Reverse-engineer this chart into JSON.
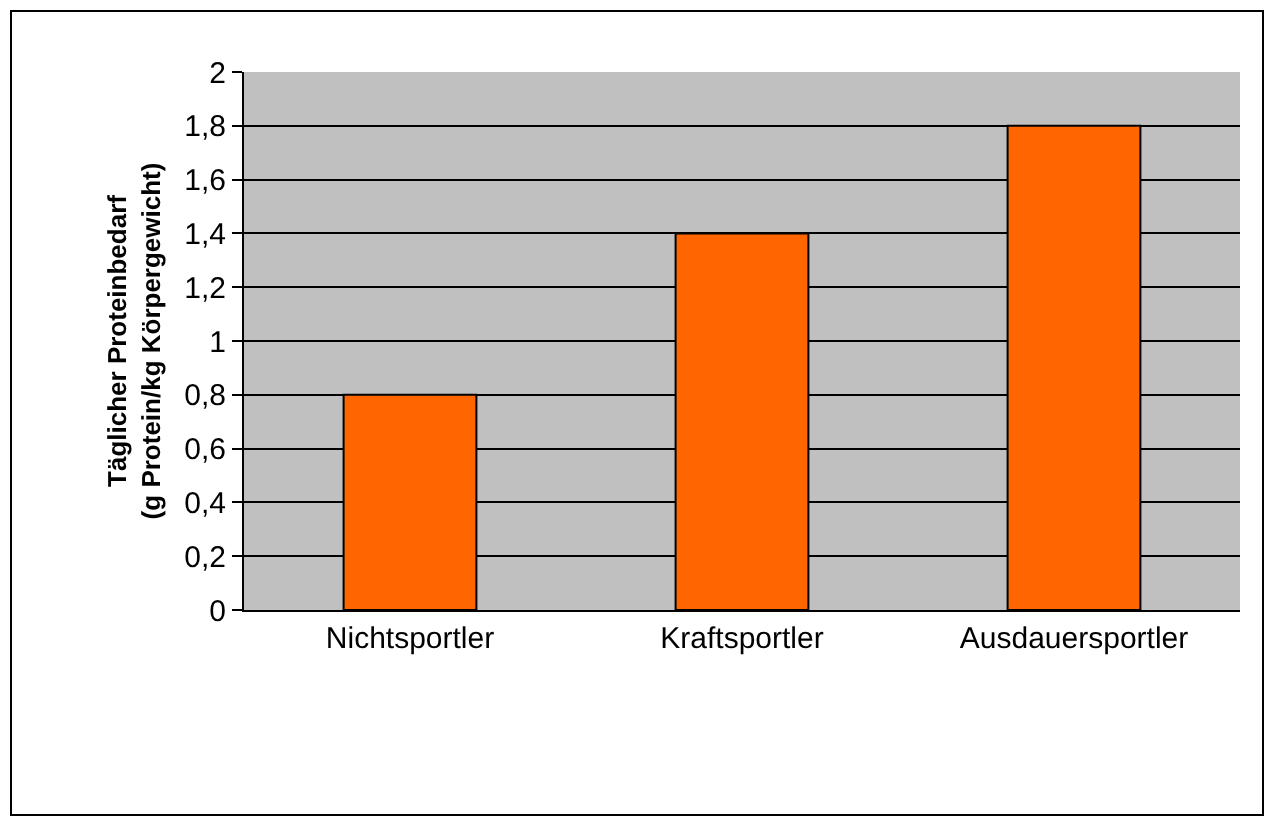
{
  "chart_data": {
    "type": "bar",
    "ylabel": "Täglicher Proteinbedarf\n(g Protein/kg Körpergewicht)",
    "categories": [
      "Nichtsportler",
      "Kraftsportler",
      "Ausdauersportler"
    ],
    "values": [
      0.8,
      1.4,
      1.8
    ],
    "color": "#ff6600",
    "ylim": [
      0,
      2
    ],
    "yticks": [
      0,
      {
        "value": 0.2,
        "label": "0,2"
      },
      {
        "value": 0.4,
        "label": "0,4"
      },
      {
        "value": 0.6,
        "label": "0,6"
      },
      {
        "value": 0.8,
        "label": "0,8"
      },
      1,
      {
        "value": 1.2,
        "label": "1,2"
      },
      {
        "value": 1.4,
        "label": "1,4"
      },
      {
        "value": 1.6,
        "label": "1,6"
      },
      {
        "value": 1.8,
        "label": "1,8"
      },
      2
    ],
    "grid": "y",
    "legend": false
  }
}
